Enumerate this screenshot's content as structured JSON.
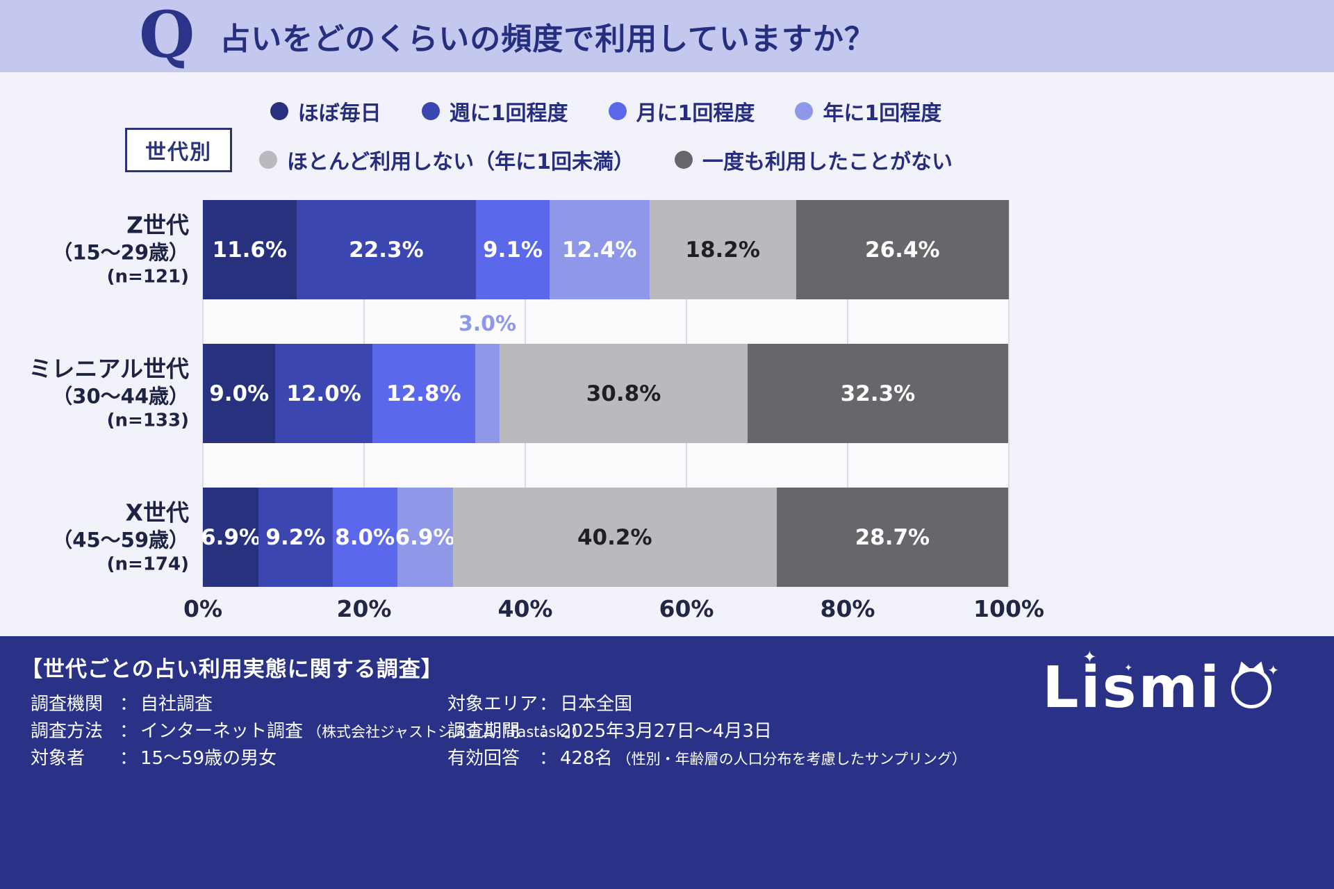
{
  "header": {
    "q_mark": "Q",
    "title": "占いをどのくらいの頻度で利用していますか？"
  },
  "group_label": "世代別",
  "colors": {
    "almost_daily": "#28317E",
    "weekly": "#3B46B0",
    "monthly": "#5B68EC",
    "yearly": "#8E97E8",
    "rarely": "#B9B9BE",
    "never": "#67676B"
  },
  "legend": {
    "rows": [
      [
        {
          "key": "almost_daily",
          "label": "ほぼ毎日"
        },
        {
          "key": "weekly",
          "label": "週に1回程度"
        },
        {
          "key": "monthly",
          "label": "月に1回程度"
        },
        {
          "key": "yearly",
          "label": "年に1回程度"
        }
      ],
      [
        {
          "key": "rarely",
          "label": "ほとんど利用しない（年に1回未満）"
        },
        {
          "key": "never",
          "label": "一度も利用したことがない"
        }
      ]
    ]
  },
  "chart_data": {
    "type": "bar",
    "variant": "horizontal_stacked_percent",
    "title": "占いをどのくらいの頻度で利用していますか？（世代別）",
    "xlim": [
      0,
      100
    ],
    "grid": true,
    "x_ticks": [
      {
        "value": 0,
        "label": "0%"
      },
      {
        "value": 20,
        "label": "20%"
      },
      {
        "value": 40,
        "label": "40%"
      },
      {
        "value": 60,
        "label": "60%"
      },
      {
        "value": 80,
        "label": "80%"
      },
      {
        "value": 100,
        "label": "100%"
      }
    ],
    "series": [
      "ほぼ毎日",
      "週に1回程度",
      "月に1回程度",
      "年に1回程度",
      "ほとんど利用しない（年に1回未満）",
      "一度も利用したことがない"
    ],
    "rows": [
      {
        "id": "gen-z",
        "name": "Z世代",
        "age_range": "（15〜29歳）",
        "sample": "(n=121)",
        "segments": [
          {
            "key": "almost_daily",
            "value": 11.6,
            "label": "11.6%",
            "label_pos": "inside",
            "label_tone": "light"
          },
          {
            "key": "weekly",
            "value": 22.3,
            "label": "22.3%",
            "label_pos": "inside",
            "label_tone": "light"
          },
          {
            "key": "monthly",
            "value": 9.1,
            "label": "9.1%",
            "label_pos": "inside",
            "label_tone": "light"
          },
          {
            "key": "yearly",
            "value": 12.4,
            "label": "12.4%",
            "label_pos": "inside",
            "label_tone": "light"
          },
          {
            "key": "rarely",
            "value": 18.2,
            "label": "18.2%",
            "label_pos": "inside",
            "label_tone": "dark"
          },
          {
            "key": "never",
            "value": 26.4,
            "label": "26.4%",
            "label_pos": "inside",
            "label_tone": "light"
          }
        ]
      },
      {
        "id": "millennial",
        "name": "ミレニアル世代",
        "age_range": "（30〜44歳）",
        "sample": "(n=133)",
        "segments": [
          {
            "key": "almost_daily",
            "value": 9.0,
            "label": "9.0%",
            "label_pos": "inside",
            "label_tone": "light"
          },
          {
            "key": "weekly",
            "value": 12.0,
            "label": "12.0%",
            "label_pos": "inside",
            "label_tone": "light"
          },
          {
            "key": "monthly",
            "value": 12.8,
            "label": "12.8%",
            "label_pos": "inside",
            "label_tone": "light"
          },
          {
            "key": "yearly",
            "value": 3.0,
            "label": "3.0%",
            "label_pos": "above",
            "label_tone": "accent"
          },
          {
            "key": "rarely",
            "value": 30.8,
            "label": "30.8%",
            "label_pos": "inside",
            "label_tone": "dark"
          },
          {
            "key": "never",
            "value": 32.3,
            "label": "32.3%",
            "label_pos": "inside",
            "label_tone": "light"
          }
        ]
      },
      {
        "id": "gen-x",
        "name": "X世代",
        "age_range": "（45〜59歳）",
        "sample": "(n=174)",
        "segments": [
          {
            "key": "almost_daily",
            "value": 6.9,
            "label": "6.9%",
            "label_pos": "inside",
            "label_tone": "light"
          },
          {
            "key": "weekly",
            "value": 9.2,
            "label": "9.2%",
            "label_pos": "inside",
            "label_tone": "light"
          },
          {
            "key": "monthly",
            "value": 8.0,
            "label": "8.0%",
            "label_pos": "inside",
            "label_tone": "light"
          },
          {
            "key": "yearly",
            "value": 6.9,
            "label": "6.9%",
            "label_pos": "inside",
            "label_tone": "light"
          },
          {
            "key": "rarely",
            "value": 40.2,
            "label": "40.2%",
            "label_pos": "inside",
            "label_tone": "dark"
          },
          {
            "key": "never",
            "value": 28.7,
            "label": "28.7%",
            "label_pos": "inside",
            "label_tone": "light"
          }
        ]
      }
    ]
  },
  "footer": {
    "title": "【世代ごとの占い利用実態に関する調査】",
    "columns": [
      [
        {
          "label": "調査機関",
          "value": "自社調査",
          "note": ""
        },
        {
          "label": "調査方法",
          "value": "インターネット調査",
          "note": "（株式会社ジャストシステム「Fastask」）"
        },
        {
          "label": "対象者",
          "value": "15〜59歳の男女",
          "note": ""
        }
      ],
      [
        {
          "label": "対象エリア",
          "value": "日本全国",
          "note": ""
        },
        {
          "label": "調査期間",
          "value": "2025年3月27日〜4月3日",
          "note": ""
        },
        {
          "label": "有効回答",
          "value": "428名",
          "note": "（性別・年齢層の人口分布を考慮したサンプリング）"
        }
      ]
    ],
    "logo_text": "Lismi"
  }
}
